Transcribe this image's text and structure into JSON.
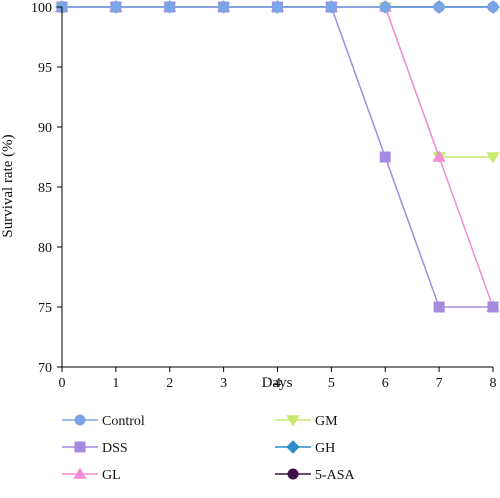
{
  "chart_data": {
    "type": "line",
    "title": "",
    "xlabel": "Days",
    "ylabel": "Survival rate (%)",
    "x": [
      0,
      1,
      2,
      3,
      4,
      5,
      6,
      7,
      8
    ],
    "xlim": [
      0,
      8
    ],
    "ylim": [
      70,
      100
    ],
    "xticks": [
      "0",
      "1",
      "2",
      "3",
      "4",
      "5",
      "6",
      "7",
      "8"
    ],
    "yticks": [
      "70",
      "75",
      "80",
      "85",
      "90",
      "95",
      "100"
    ],
    "grid": false,
    "legend_position": "bottom",
    "series": [
      {
        "name": "Control",
        "color": "#7aa6e6",
        "marker": "circle",
        "values": [
          100,
          100,
          100,
          100,
          100,
          100,
          100,
          100,
          100
        ]
      },
      {
        "name": "DSS",
        "color": "#a58be0",
        "marker": "square",
        "values": [
          100,
          100,
          100,
          100,
          100,
          100,
          87.5,
          75,
          75
        ]
      },
      {
        "name": "GL",
        "color": "#f28cd9",
        "marker": "triangle-up",
        "values": [
          100,
          100,
          100,
          100,
          100,
          100,
          100,
          87.5,
          75
        ]
      },
      {
        "name": "GM",
        "color": "#c6e86e",
        "marker": "triangle-down",
        "values": [
          100,
          100,
          100,
          100,
          100,
          100,
          100,
          87.5,
          87.5
        ]
      },
      {
        "name": "GH",
        "color": "#2e8fc8",
        "marker": "diamond",
        "values": [
          100,
          100,
          100,
          100,
          100,
          100,
          100,
          100,
          100
        ]
      },
      {
        "name": "5-ASA",
        "color": "#3a1346",
        "marker": "circle",
        "values": [
          100,
          100,
          100,
          100,
          100,
          100,
          100,
          100,
          100
        ]
      }
    ]
  }
}
